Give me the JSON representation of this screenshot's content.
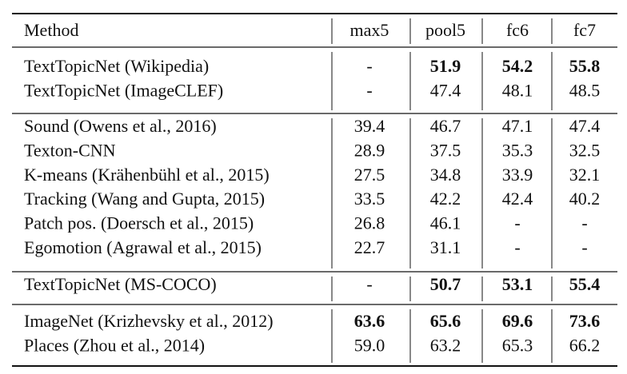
{
  "table": {
    "header": [
      "Method",
      "max5",
      "pool5",
      "fc6",
      "fc7"
    ],
    "groups": [
      {
        "rows": [
          {
            "method": "TextTopicNet (Wikipedia)",
            "values": [
              "-",
              "51.9",
              "54.2",
              "55.8"
            ],
            "bold": [
              false,
              true,
              true,
              true
            ]
          },
          {
            "method": "TextTopicNet (ImageCLEF)",
            "values": [
              "-",
              "47.4",
              "48.1",
              "48.5"
            ],
            "bold": [
              false,
              false,
              false,
              false
            ]
          }
        ]
      },
      {
        "rows": [
          {
            "method": "Sound  (Owens et al., 2016)",
            "values": [
              "39.4",
              "46.7",
              "47.1",
              "47.4"
            ],
            "bold": [
              false,
              false,
              false,
              false
            ]
          },
          {
            "method": "Texton-CNN",
            "values": [
              "28.9",
              "37.5",
              "35.3",
              "32.5"
            ],
            "bold": [
              false,
              false,
              false,
              false
            ]
          },
          {
            "method": "K-means (Krähenbühl et al., 2015)",
            "values": [
              "27.5",
              "34.8",
              "33.9",
              "32.1"
            ],
            "bold": [
              false,
              false,
              false,
              false
            ]
          },
          {
            "method": "Tracking (Wang and Gupta, 2015)",
            "values": [
              "33.5",
              "42.2",
              "42.4",
              "40.2"
            ],
            "bold": [
              false,
              false,
              false,
              false
            ]
          },
          {
            "method": "Patch pos. (Doersch et al., 2015)",
            "values": [
              "26.8",
              "46.1",
              "-",
              "-"
            ],
            "bold": [
              false,
              false,
              false,
              false
            ]
          },
          {
            "method": "Egomotion (Agrawal et al., 2015)",
            "values": [
              "22.7",
              "31.1",
              "-",
              "-"
            ],
            "bold": [
              false,
              false,
              false,
              false
            ]
          }
        ]
      },
      {
        "rows": [
          {
            "method": "TextTopicNet (MS-COCO)",
            "values": [
              "-",
              "50.7",
              "53.1",
              "55.4"
            ],
            "bold": [
              false,
              true,
              true,
              true
            ]
          }
        ]
      },
      {
        "rows": [
          {
            "method": "ImageNet (Krizhevsky et al., 2012)",
            "values": [
              "63.6",
              "65.6",
              "69.6",
              "73.6"
            ],
            "bold": [
              true,
              true,
              true,
              true
            ]
          },
          {
            "method": "Places (Zhou et al., 2014)",
            "values": [
              "59.0",
              "63.2",
              "65.3",
              "66.2"
            ],
            "bold": [
              false,
              false,
              false,
              false
            ]
          }
        ]
      }
    ]
  }
}
